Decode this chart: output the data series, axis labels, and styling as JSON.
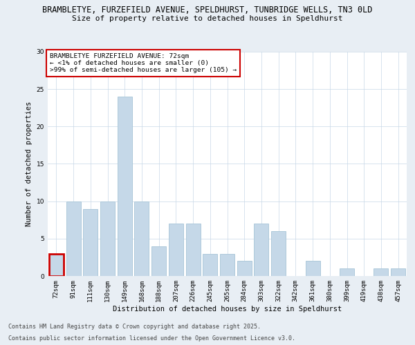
{
  "title_line1": "BRAMBLETYE, FURZEFIELD AVENUE, SPELDHURST, TUNBRIDGE WELLS, TN3 0LD",
  "title_line2": "Size of property relative to detached houses in Speldhurst",
  "xlabel": "Distribution of detached houses by size in Speldhurst",
  "ylabel": "Number of detached properties",
  "categories": [
    "72sqm",
    "91sqm",
    "111sqm",
    "130sqm",
    "149sqm",
    "168sqm",
    "188sqm",
    "207sqm",
    "226sqm",
    "245sqm",
    "265sqm",
    "284sqm",
    "303sqm",
    "322sqm",
    "342sqm",
    "361sqm",
    "380sqm",
    "399sqm",
    "419sqm",
    "438sqm",
    "457sqm"
  ],
  "values": [
    3,
    10,
    9,
    10,
    24,
    10,
    4,
    7,
    7,
    3,
    3,
    2,
    7,
    6,
    0,
    2,
    0,
    1,
    0,
    1,
    1
  ],
  "bar_color": "#c5d8e8",
  "bar_edge_color": "#aec9db",
  "highlight_index": 0,
  "highlight_edge_color": "#cc0000",
  "ylim": [
    0,
    30
  ],
  "yticks": [
    0,
    5,
    10,
    15,
    20,
    25,
    30
  ],
  "annotation_title": "BRAMBLETYE FURZEFIELD AVENUE: 72sqm",
  "annotation_line2": "← <1% of detached houses are smaller (0)",
  "annotation_line3": ">99% of semi-detached houses are larger (105) →",
  "footer_line1": "Contains HM Land Registry data © Crown copyright and database right 2025.",
  "footer_line2": "Contains public sector information licensed under the Open Government Licence v3.0.",
  "background_color": "#e8eef4",
  "plot_bg_color": "#ffffff",
  "grid_color": "#c8d8e8",
  "title_fontsize": 8.5,
  "subtitle_fontsize": 8,
  "axis_label_fontsize": 7.5,
  "tick_fontsize": 6.5,
  "annotation_fontsize": 6.8,
  "footer_fontsize": 6
}
